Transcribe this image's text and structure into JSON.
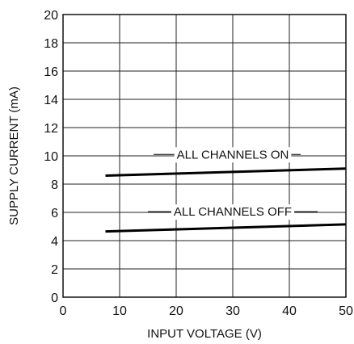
{
  "chart_data": {
    "type": "line",
    "xlabel": "INPUT VOLTAGE (V)",
    "ylabel": "SUPPLY CURRENT (mA)",
    "xlim": [
      0,
      50
    ],
    "ylim": [
      0,
      20
    ],
    "x_ticks": [
      0,
      10,
      20,
      30,
      40,
      50
    ],
    "y_ticks": [
      0,
      2,
      4,
      6,
      8,
      10,
      12,
      14,
      16,
      18,
      20
    ],
    "grid": true,
    "series": [
      {
        "label": "ALL CHANNELS ON",
        "x": [
          7.5,
          50
        ],
        "y": [
          8.6,
          9.1
        ],
        "label_at": {
          "x": 30,
          "y": 10.1,
          "anchor_x": 16,
          "anchor_y": 10.1,
          "end_x": 42
        }
      },
      {
        "label": "ALL CHANNELS OFF",
        "x": [
          7.5,
          50
        ],
        "y": [
          4.65,
          5.15
        ],
        "label_at": {
          "x": 30,
          "y": 6.05,
          "anchor_x": 15,
          "anchor_y": 6.05,
          "end_x": 45
        }
      }
    ]
  }
}
